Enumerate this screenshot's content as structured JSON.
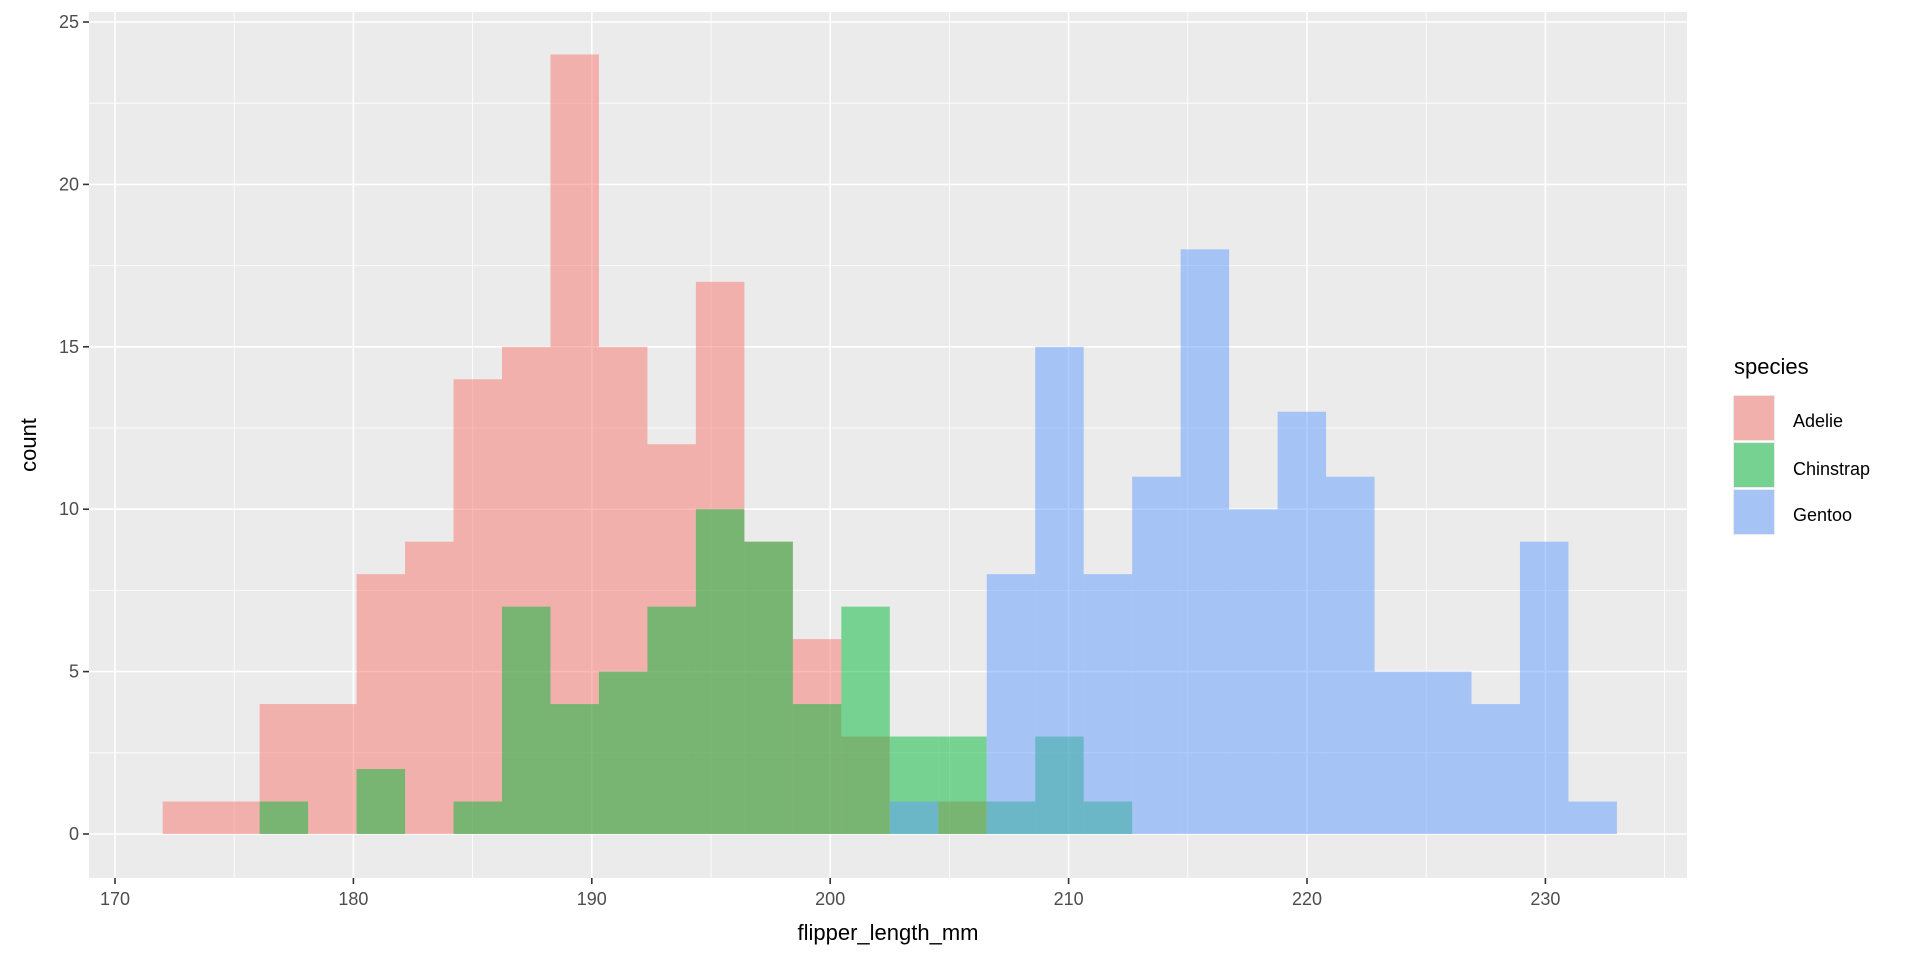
{
  "chart_data": {
    "type": "bar",
    "subtype": "histogram-overlaid",
    "title": "",
    "xlabel": "flipper_length_mm",
    "ylabel": "count",
    "xlim": [
      169.0,
      236.0
    ],
    "ylim": [
      -1.2,
      25.3
    ],
    "x_ticks": [
      "170",
      "180",
      "190",
      "200",
      "210",
      "220",
      "230"
    ],
    "y_ticks": [
      "0",
      "5",
      "10",
      "15",
      "20",
      "25"
    ],
    "grid": true,
    "bin_start": 172,
    "bin_end": 233,
    "bins": 30,
    "alpha": 0.5,
    "legend": {
      "title": "species",
      "position": "right"
    },
    "series": [
      {
        "name": "Adelie",
        "color": "#F8766D",
        "values": [
          1,
          1,
          4,
          4,
          8,
          9,
          14,
          15,
          24,
          15,
          12,
          17,
          9,
          6,
          3,
          0,
          1,
          0,
          0,
          0,
          0,
          0,
          0,
          0,
          0,
          0,
          0,
          0,
          0,
          0
        ]
      },
      {
        "name": "Chinstrap",
        "color": "#00BA38",
        "values": [
          0,
          0,
          1,
          0,
          2,
          0,
          1,
          7,
          4,
          5,
          7,
          10,
          9,
          4,
          7,
          3,
          3,
          1,
          3,
          1,
          0,
          0,
          0,
          0,
          0,
          0,
          0,
          0,
          0,
          0
        ]
      },
      {
        "name": "Gentoo",
        "color": "#619CFF",
        "values": [
          0,
          0,
          0,
          0,
          0,
          0,
          0,
          0,
          0,
          0,
          0,
          0,
          0,
          0,
          0,
          1,
          0,
          8,
          15,
          8,
          11,
          18,
          10,
          13,
          11,
          5,
          5,
          4,
          9,
          1
        ]
      }
    ]
  },
  "colors": {
    "panel_background": "#EBEBEB",
    "grid": "#FFFFFF"
  }
}
